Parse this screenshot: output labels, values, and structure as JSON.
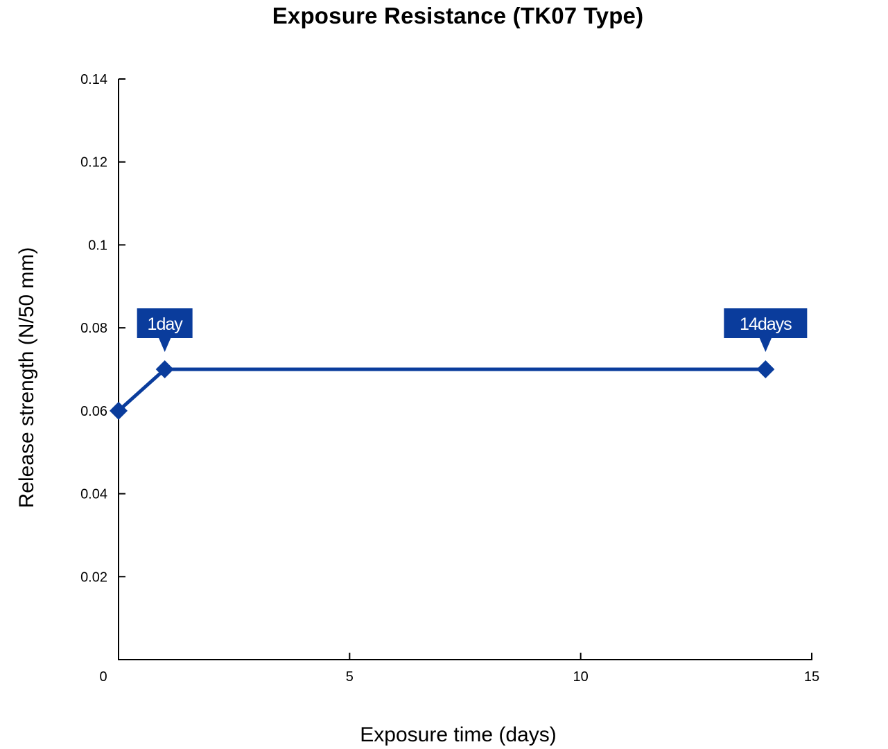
{
  "chart_data": {
    "type": "line",
    "title": "Exposure Resistance (TK07 Type)",
    "xlabel": "Exposure time (days)",
    "ylabel": "Release strength (N/50 mm)",
    "xlim": [
      0,
      15
    ],
    "ylim": [
      0,
      0.14
    ],
    "x_ticks": [
      {
        "value": 0,
        "label": "0"
      },
      {
        "value": 5,
        "label": "5"
      },
      {
        "value": 10,
        "label": "10"
      },
      {
        "value": 15,
        "label": "15"
      }
    ],
    "y_ticks": [
      {
        "value": 0.02,
        "label": "0.02"
      },
      {
        "value": 0.04,
        "label": "0.04"
      },
      {
        "value": 0.06,
        "label": "0.06"
      },
      {
        "value": 0.08,
        "label": "0.08"
      },
      {
        "value": 0.1,
        "label": "0.1"
      },
      {
        "value": 0.12,
        "label": "0.12"
      },
      {
        "value": 0.14,
        "label": "0.14"
      }
    ],
    "grid": false,
    "series": [
      {
        "color": "#0a3c9c",
        "marker": "diamond",
        "points": [
          {
            "x": 0,
            "y": 0.06
          },
          {
            "x": 1,
            "y": 0.07
          },
          {
            "x": 14,
            "y": 0.07
          }
        ]
      }
    ],
    "annotations": [
      {
        "x": 1,
        "y": 0.07,
        "text": "1day"
      },
      {
        "x": 14,
        "y": 0.07,
        "text": "14days"
      }
    ]
  }
}
